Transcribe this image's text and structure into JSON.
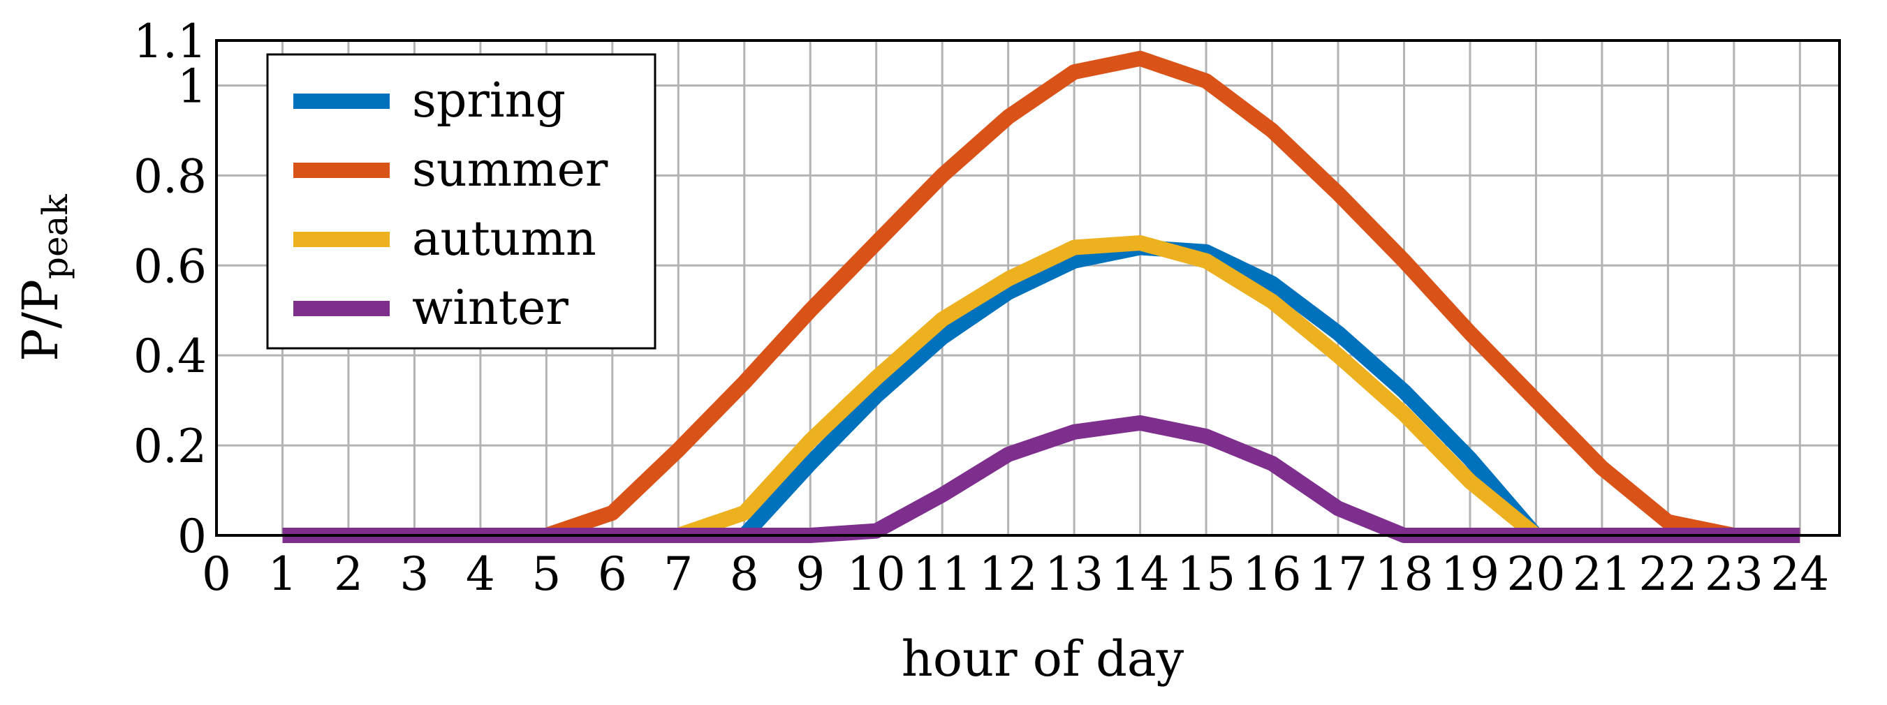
{
  "chart_data": {
    "type": "line",
    "xlabel": "hour of day",
    "ylabel_main": "P/P",
    "ylabel_sub": "peak",
    "xlim": [
      0,
      24.6
    ],
    "ylim": [
      0,
      1.1
    ],
    "xticks": [
      0,
      1,
      2,
      3,
      4,
      5,
      6,
      7,
      8,
      9,
      10,
      11,
      12,
      13,
      14,
      15,
      16,
      17,
      18,
      19,
      20,
      21,
      22,
      23,
      24
    ],
    "yticks": [
      0,
      0.2,
      0.4,
      0.6,
      0.8,
      1,
      1.1
    ],
    "grid": true,
    "legend_position": "top-left",
    "x": [
      1,
      2,
      3,
      4,
      5,
      6,
      7,
      8,
      9,
      10,
      11,
      12,
      13,
      14,
      15,
      16,
      17,
      18,
      19,
      20,
      21,
      22,
      23,
      24
    ],
    "series": [
      {
        "name": "spring",
        "color": "#0072BD",
        "values": [
          0,
          0,
          0,
          0,
          0,
          0,
          0,
          0,
          0.16,
          0.31,
          0.44,
          0.54,
          0.61,
          0.64,
          0.63,
          0.56,
          0.45,
          0.32,
          0.17,
          0,
          0,
          0,
          0,
          0
        ]
      },
      {
        "name": "summer",
        "color": "#D95319",
        "values": [
          0,
          0,
          0,
          0,
          0,
          0.05,
          0.19,
          0.34,
          0.5,
          0.65,
          0.8,
          0.93,
          1.03,
          1.06,
          1.01,
          0.9,
          0.76,
          0.61,
          0.45,
          0.3,
          0.15,
          0.03,
          0,
          0
        ]
      },
      {
        "name": "autumn",
        "color": "#EDB120",
        "values": [
          0,
          0,
          0,
          0,
          0,
          0,
          0,
          0.05,
          0.21,
          0.35,
          0.48,
          0.57,
          0.64,
          0.65,
          0.61,
          0.52,
          0.4,
          0.27,
          0.12,
          0,
          0,
          0,
          0,
          0
        ]
      },
      {
        "name": "winter",
        "color": "#7E2F8E",
        "values": [
          0,
          0,
          0,
          0,
          0,
          0,
          0,
          0,
          0,
          0.01,
          0.09,
          0.18,
          0.23,
          0.25,
          0.22,
          0.16,
          0.06,
          0,
          0,
          0,
          0,
          0,
          0,
          0
        ]
      }
    ]
  }
}
